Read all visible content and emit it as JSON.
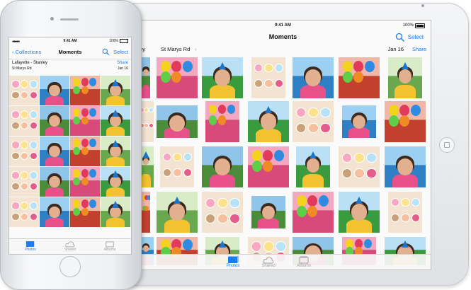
{
  "ipad": {
    "status": {
      "time": "9:41 AM",
      "battery": "100%"
    },
    "nav": {
      "title": "Moments",
      "select": "Select"
    },
    "location": {
      "partial": "tanley",
      "place": "St Marys Rd",
      "date": "Jan 16",
      "share": "Share"
    },
    "tabs": [
      {
        "label": "Photos",
        "active": true
      },
      {
        "label": "Shared",
        "active": false
      },
      {
        "label": "Albums",
        "active": false
      }
    ]
  },
  "iphone": {
    "status": {
      "time": "9:41 AM",
      "battery": "100%"
    },
    "nav": {
      "back": "Collections",
      "title": "Moments",
      "select": "Select"
    },
    "location": {
      "place": "Lafayette - Stanley",
      "street": "St Marys Rd",
      "share": "Share",
      "date": "Jan 16"
    },
    "tabs": [
      {
        "label": "Photos",
        "active": true
      },
      {
        "label": "Shared",
        "active": false
      },
      {
        "label": "Albums",
        "active": false
      }
    ]
  },
  "colors": {
    "accent": "#1a7cf5",
    "inactive_tab": "#9a9a9a"
  },
  "icons": {
    "search": "search-icon",
    "photos": "photos-tab-icon",
    "shared": "cloud-icon",
    "albums": "albums-icon",
    "home": "home-button-icon"
  }
}
